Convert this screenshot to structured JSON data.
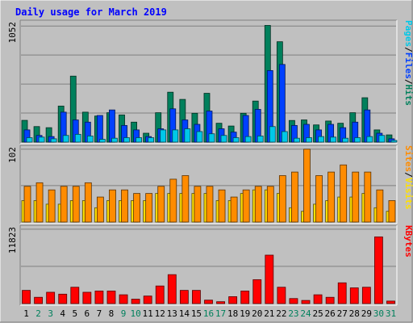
{
  "chart_data": {
    "type": "bar",
    "title": "Daily usage for March 2019",
    "categories": [
      "1",
      "2",
      "3",
      "4",
      "5",
      "6",
      "7",
      "8",
      "9",
      "10",
      "11",
      "12",
      "13",
      "14",
      "15",
      "16",
      "17",
      "18",
      "19",
      "20",
      "21",
      "22",
      "23",
      "24",
      "25",
      "26",
      "27",
      "28",
      "29",
      "30",
      "31"
    ],
    "weekend_days": [
      "2",
      "3",
      "9",
      "10",
      "16",
      "17",
      "23",
      "24",
      "30",
      "31"
    ],
    "panels": [
      {
        "id": "hits",
        "y_max_label": "1052",
        "y_max": 1052,
        "right_labels": [
          {
            "text": "Pages",
            "color": "#00c8e8"
          },
          {
            "text": "/",
            "color": "#000000"
          },
          {
            "text": "Files",
            "color": "#0040ff"
          },
          {
            "text": "/",
            "color": "#000000"
          },
          {
            "text": "Hits",
            "color": "#00805c"
          }
        ],
        "series": [
          {
            "name": "Hits",
            "color": "#00805c",
            "values": [
              196,
              140,
              130,
              325,
              595,
              270,
              235,
              265,
              245,
              180,
              80,
              265,
              450,
              385,
              260,
              440,
              170,
              145,
              260,
              370,
              1052,
              905,
              195,
              200,
              155,
              190,
              170,
              265,
              400,
              110,
              65
            ]
          },
          {
            "name": "Files",
            "color": "#0040ff",
            "values": [
              110,
              60,
              50,
              270,
              200,
              180,
              240,
              290,
              150,
              110,
              50,
              120,
              300,
              200,
              160,
              280,
              120,
              90,
              240,
              295,
              645,
              700,
              150,
              160,
              110,
              160,
              130,
              180,
              290,
              80,
              30
            ]
          },
          {
            "name": "Pages",
            "color": "#00c8e8",
            "values": [
              40,
              45,
              30,
              60,
              70,
              55,
              25,
              35,
              40,
              40,
              40,
              110,
              110,
              120,
              95,
              75,
              60,
              40,
              50,
              55,
              140,
              95,
              35,
              40,
              50,
              45,
              35,
              40,
              50,
              60,
              15
            ]
          }
        ]
      },
      {
        "id": "visits",
        "y_max_label": "102",
        "y_max": 102,
        "right_labels": [
          {
            "text": "Sites",
            "color": "#ff8c00"
          },
          {
            "text": "/",
            "color": "#000000"
          },
          {
            "text": "Visits",
            "color": "#ffe000"
          }
        ],
        "series": [
          {
            "name": "Visits",
            "color": "#ffe000",
            "values": [
              30,
              30,
              25,
              25,
              30,
              30,
              20,
              30,
              30,
              30,
              30,
              40,
              40,
              40,
              40,
              40,
              30,
              30,
              40,
              45,
              45,
              40,
              20,
              15,
              25,
              30,
              35,
              35,
              40,
              20,
              15
            ]
          },
          {
            "name": "Sites",
            "color": "#ff8c00",
            "values": [
              50,
              55,
              45,
              50,
              50,
              55,
              35,
              45,
              45,
              40,
              40,
              50,
              60,
              65,
              50,
              50,
              45,
              35,
              45,
              50,
              50,
              65,
              70,
              102,
              65,
              70,
              80,
              70,
              70,
              45,
              30
            ]
          }
        ]
      },
      {
        "id": "kbytes",
        "y_max_label": "11823",
        "y_max": 11823,
        "right_labels": [
          {
            "text": "KBytes",
            "color": "#ff0000"
          }
        ],
        "series": [
          {
            "name": "KBytes",
            "color": "#ff0000",
            "values": [
              2100,
              1000,
              1800,
              1500,
              2600,
              1800,
              2000,
              2000,
              1400,
              700,
              1200,
              2800,
              4600,
              2100,
              2100,
              550,
              300,
              1100,
              2000,
              3800,
              7700,
              2600,
              800,
              500,
              1400,
              1000,
              3300,
              2500,
              2600,
              10600,
              400
            ]
          }
        ]
      }
    ]
  }
}
